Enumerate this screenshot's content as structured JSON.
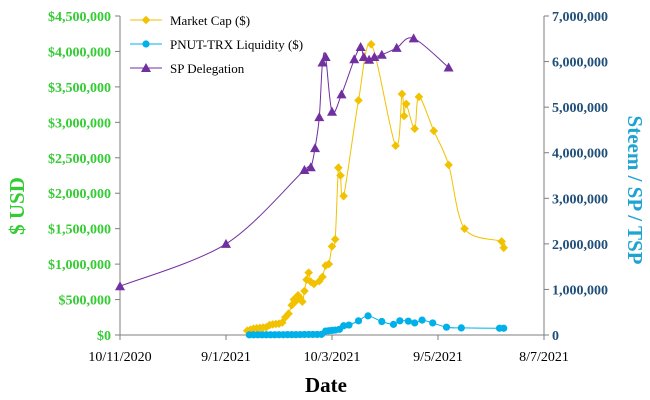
{
  "chart_data": {
    "type": "line",
    "xlabel": "Date",
    "ylabel_left": "$ USD",
    "ylabel_right": "Steem / SP / TSP",
    "x_ticks": [
      "10/11/2020",
      "9/1/2021",
      "10/3/2021",
      "9/5/2021",
      "8/7/2021"
    ],
    "x_range": [
      0,
      4
    ],
    "y_left": {
      "range": [
        0,
        4500000
      ],
      "ticks": [
        "$0",
        "$500,000",
        "$1,000,000",
        "$1,500,000",
        "$2,000,000",
        "$2,500,000",
        "$3,000,000",
        "$3,500,000",
        "$4,000,000",
        "$4,500,000"
      ]
    },
    "y_right": {
      "range": [
        0,
        7000000
      ],
      "ticks": [
        "0",
        "1,000,000",
        "2,000,000",
        "3,000,000",
        "4,000,000",
        "5,000,000",
        "6,000,000",
        "7,000,000"
      ]
    },
    "legend": "top-left",
    "grid": false,
    "series": [
      {
        "name": "Market Cap ($)",
        "axis": "left",
        "color": "#f2c200",
        "marker": "diamond",
        "points": [
          [
            1.2,
            60000
          ],
          [
            1.23,
            75000
          ],
          [
            1.26,
            90000
          ],
          [
            1.29,
            95000
          ],
          [
            1.32,
            100000
          ],
          [
            1.35,
            105000
          ],
          [
            1.38,
            110000
          ],
          [
            1.41,
            140000
          ],
          [
            1.44,
            150000
          ],
          [
            1.47,
            155000
          ],
          [
            1.5,
            160000
          ],
          [
            1.53,
            175000
          ],
          [
            1.56,
            250000
          ],
          [
            1.59,
            300000
          ],
          [
            1.62,
            420000
          ],
          [
            1.64,
            500000
          ],
          [
            1.66,
            480000
          ],
          [
            1.68,
            560000
          ],
          [
            1.7,
            520000
          ],
          [
            1.72,
            470000
          ],
          [
            1.74,
            620000
          ],
          [
            1.76,
            780000
          ],
          [
            1.78,
            880000
          ],
          [
            1.8,
            750000
          ],
          [
            1.83,
            720000
          ],
          [
            1.88,
            760000
          ],
          [
            1.91,
            820000
          ],
          [
            1.94,
            980000
          ],
          [
            1.97,
            1000000
          ],
          [
            2.0,
            1250000
          ],
          [
            2.03,
            1350000
          ],
          [
            2.06,
            2360000
          ],
          [
            2.08,
            2250000
          ],
          [
            2.11,
            1960000
          ],
          [
            2.25,
            3310000
          ],
          [
            2.37,
            4100000
          ],
          [
            2.6,
            2670000
          ],
          [
            2.66,
            3400000
          ],
          [
            2.68,
            3090000
          ],
          [
            2.7,
            3260000
          ],
          [
            2.78,
            2910000
          ],
          [
            2.82,
            3360000
          ],
          [
            2.96,
            2880000
          ],
          [
            3.1,
            2400000
          ],
          [
            3.25,
            1500000
          ],
          [
            3.6,
            1320000
          ],
          [
            3.62,
            1230000
          ]
        ]
      },
      {
        "name": "PNUT-TRX Liquidity ($)",
        "axis": "left",
        "color": "#00b0e8",
        "marker": "circle",
        "points": [
          [
            1.22,
            2000
          ],
          [
            1.26,
            3000
          ],
          [
            1.3,
            3000
          ],
          [
            1.34,
            3000
          ],
          [
            1.38,
            3000
          ],
          [
            1.42,
            3000
          ],
          [
            1.46,
            3000
          ],
          [
            1.5,
            4000
          ],
          [
            1.54,
            4000
          ],
          [
            1.58,
            5000
          ],
          [
            1.62,
            5000
          ],
          [
            1.66,
            5000
          ],
          [
            1.7,
            6000
          ],
          [
            1.74,
            7000
          ],
          [
            1.78,
            8000
          ],
          [
            1.82,
            8000
          ],
          [
            1.86,
            8000
          ],
          [
            1.9,
            9000
          ],
          [
            1.94,
            55000
          ],
          [
            1.97,
            60000
          ],
          [
            2.0,
            65000
          ],
          [
            2.03,
            70000
          ],
          [
            2.07,
            80000
          ],
          [
            2.11,
            130000
          ],
          [
            2.16,
            140000
          ],
          [
            2.25,
            200000
          ],
          [
            2.34,
            270000
          ],
          [
            2.47,
            190000
          ],
          [
            2.58,
            150000
          ],
          [
            2.64,
            200000
          ],
          [
            2.72,
            195000
          ],
          [
            2.78,
            170000
          ],
          [
            2.85,
            210000
          ],
          [
            2.95,
            170000
          ],
          [
            3.08,
            110000
          ],
          [
            3.22,
            100000
          ],
          [
            3.58,
            95000
          ],
          [
            3.62,
            95000
          ]
        ]
      },
      {
        "name": "SP Delegation",
        "axis": "right",
        "color": "#7030a0",
        "marker": "triangle",
        "points": [
          [
            0.0,
            1070000
          ],
          [
            1.0,
            2000000
          ],
          [
            1.74,
            3620000
          ],
          [
            1.8,
            3680000
          ],
          [
            1.84,
            4100000
          ],
          [
            1.88,
            4780000
          ],
          [
            1.91,
            5980000
          ],
          [
            1.94,
            6100000
          ],
          [
            2.0,
            4900000
          ],
          [
            2.09,
            5280000
          ],
          [
            2.21,
            6050000
          ],
          [
            2.27,
            6320000
          ],
          [
            2.3,
            6100000
          ],
          [
            2.35,
            6040000
          ],
          [
            2.4,
            6100000
          ],
          [
            2.47,
            6150000
          ],
          [
            2.61,
            6300000
          ],
          [
            2.77,
            6510000
          ],
          [
            3.1,
            5870000
          ]
        ]
      }
    ]
  }
}
